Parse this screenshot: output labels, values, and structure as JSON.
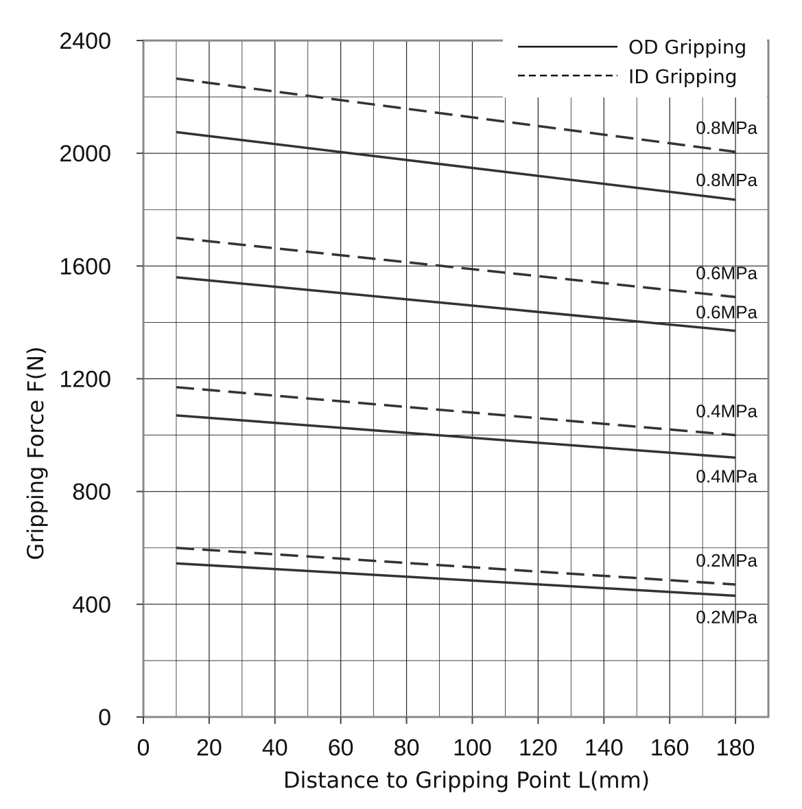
{
  "chart_data": {
    "type": "line",
    "title": "",
    "xlabel": "Distance to Gripping Point  L(mm)",
    "ylabel": "Gripping Force  F(N)",
    "xlim": [
      0,
      190
    ],
    "ylim": [
      0,
      2400
    ],
    "x_ticks": [
      "0",
      "20",
      "40",
      "60",
      "80",
      "100",
      "120",
      "140",
      "160",
      "180"
    ],
    "y_ticks": [
      "0",
      "400",
      "800",
      "1200",
      "1600",
      "2000",
      "2400"
    ],
    "x_grid_step": 10,
    "y_grid_step": 200,
    "grid": true,
    "legend": {
      "position": "top-right",
      "entries": [
        {
          "label": "OD Gripping",
          "style": "solid"
        },
        {
          "label": "ID Gripping",
          "style": "dashed"
        }
      ]
    },
    "series": [
      {
        "label": "0.8MPa",
        "style": "dashed",
        "x": [
          10,
          180
        ],
        "y": [
          2265,
          2005
        ]
      },
      {
        "label": "0.8MPa",
        "style": "solid",
        "x": [
          10,
          180
        ],
        "y": [
          2075,
          1835
        ]
      },
      {
        "label": "0.6MPa",
        "style": "dashed",
        "x": [
          10,
          180
        ],
        "y": [
          1700,
          1490
        ]
      },
      {
        "label": "0.6MPa",
        "style": "solid",
        "x": [
          10,
          180
        ],
        "y": [
          1560,
          1370
        ]
      },
      {
        "label": "0.4MPa",
        "style": "dashed",
        "x": [
          10,
          180
        ],
        "y": [
          1170,
          1000
        ]
      },
      {
        "label": "0.4MPa",
        "style": "solid",
        "x": [
          10,
          180
        ],
        "y": [
          1070,
          920
        ]
      },
      {
        "label": "0.2MPa",
        "style": "dashed",
        "x": [
          10,
          180
        ],
        "y": [
          600,
          470
        ]
      },
      {
        "label": "0.2MPa",
        "style": "solid",
        "x": [
          10,
          180
        ],
        "y": [
          545,
          430
        ]
      }
    ],
    "colors": {
      "line": "#333333",
      "grid": "#222222",
      "frame": "#888888"
    }
  }
}
